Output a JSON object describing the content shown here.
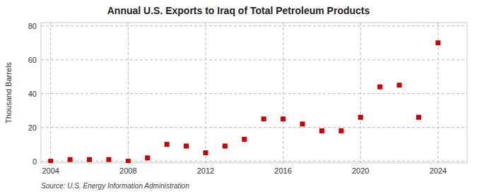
{
  "chart_data": {
    "type": "scatter",
    "title": "Annual U.S. Exports to Iraq of Total Petroleum Products",
    "y_label": "Thousand Barrels",
    "annotations": [
      "Source: U.S. Energy Information Administration"
    ],
    "x": [
      2004,
      2005,
      2006,
      2007,
      2008,
      2009,
      2010,
      2011,
      2012,
      2013,
      2014,
      2015,
      2016,
      2017,
      2018,
      2019,
      2020,
      2021,
      2022,
      2023,
      2024
    ],
    "values": [
      0,
      1,
      1,
      1,
      0,
      2,
      10,
      9,
      5,
      9,
      13,
      25,
      25,
      22,
      18,
      18,
      26,
      44,
      45,
      26,
      70
    ],
    "color": "#cc0000",
    "marker": "square",
    "xlim": [
      2003.5,
      2025.5
    ],
    "ylim": [
      -1,
      82
    ],
    "xticks": [
      2004,
      2008,
      2012,
      2016,
      2020,
      2024
    ],
    "yticks": [
      0,
      20,
      40,
      60,
      80
    ],
    "grid": true
  }
}
